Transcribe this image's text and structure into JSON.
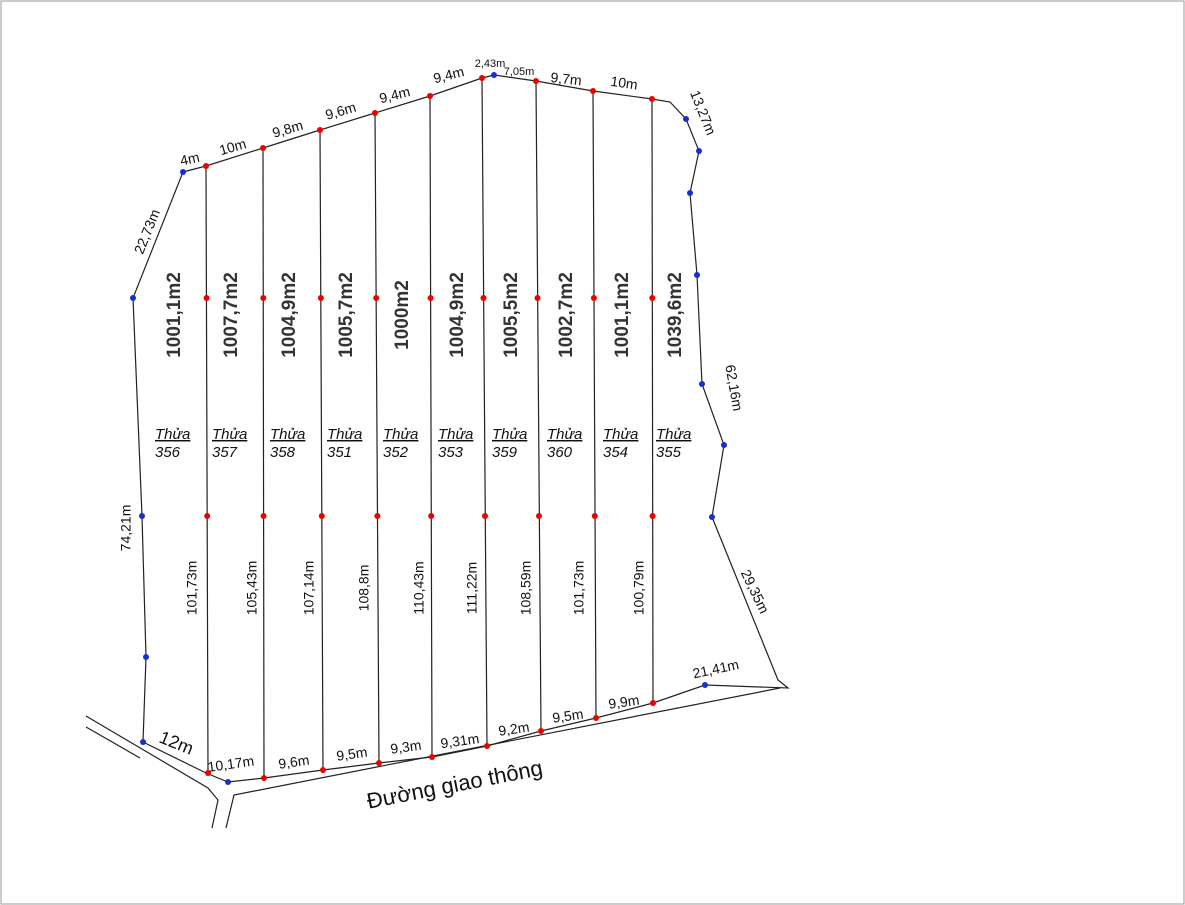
{
  "plots": [
    {
      "area": "1001,1m2",
      "label": "Thửa",
      "number": "356"
    },
    {
      "area": "1007,7m2",
      "label": "Thửa",
      "number": "357"
    },
    {
      "area": "1004,9m2",
      "label": "Thửa",
      "number": "358"
    },
    {
      "area": "1005,7m2",
      "label": "Thửa",
      "number": "351"
    },
    {
      "area": "1000m2",
      "label": "Thửa",
      "number": "352"
    },
    {
      "area": "1004,9m2",
      "label": "Thửa",
      "number": "353"
    },
    {
      "area": "1005,5m2",
      "label": "Thửa",
      "number": "359"
    },
    {
      "area": "1002,7m2",
      "label": "Thửa",
      "number": "360"
    },
    {
      "area": "1001,1m2",
      "label": "Thửa",
      "number": "354"
    },
    {
      "area": "1039,6m2",
      "label": "Thửa",
      "number": "355"
    }
  ],
  "divider_lengths": [
    "101,73m",
    "105,43m",
    "107,14m",
    "108,8m",
    "110,43m",
    "111,22m",
    "108,59m",
    "101,73m",
    "100,79m"
  ],
  "top_edges": [
    "4m",
    "10m",
    "9,8m",
    "9,6m",
    "9,4m",
    "9,4m",
    "2,43m",
    "7,05m",
    "9,7m",
    "10m"
  ],
  "side_edges": [
    "22,73m",
    "74,21m",
    "13,27m",
    "62,16m",
    "29,35m",
    "21,41m",
    "12m"
  ],
  "bottom_edges": [
    "10,17m",
    "9,6m",
    "9,5m",
    "9,3m",
    "9,31m",
    "9,2m",
    "9,5m",
    "9,9m"
  ],
  "road": "Đường giao thông"
}
